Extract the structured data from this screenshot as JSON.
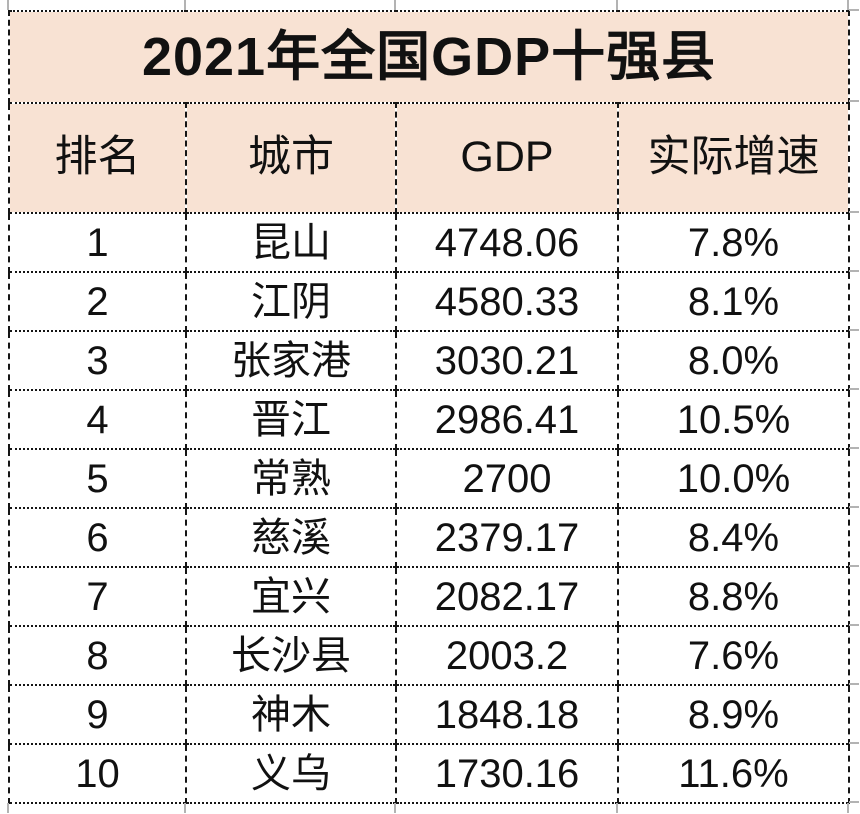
{
  "colors": {
    "header_fill": "#F8E2D3",
    "border": "#151515",
    "text": "#111111",
    "gridline_tick": "#B3B3B3",
    "background": "#FFFFFF"
  },
  "chart_data": {
    "type": "table",
    "title": "2021年全国GDP十强县",
    "columns": [
      "排名",
      "城市",
      "GDP",
      "实际增速"
    ],
    "rows": [
      [
        "1",
        "昆山",
        "4748.06",
        "7.8%"
      ],
      [
        "2",
        "江阴",
        "4580.33",
        "8.1%"
      ],
      [
        "3",
        "张家港",
        "3030.21",
        "8.0%"
      ],
      [
        "4",
        "晋江",
        "2986.41",
        "10.5%"
      ],
      [
        "5",
        "常熟",
        "2700",
        "10.0%"
      ],
      [
        "6",
        "慈溪",
        "2379.17",
        "8.4%"
      ],
      [
        "7",
        "宜兴",
        "2082.17",
        "8.8%"
      ],
      [
        "8",
        "长沙县",
        "2003.2",
        "7.6%"
      ],
      [
        "9",
        "神木",
        "1848.18",
        "8.9%"
      ],
      [
        "10",
        "义乌",
        "1730.16",
        "11.6%"
      ]
    ]
  }
}
